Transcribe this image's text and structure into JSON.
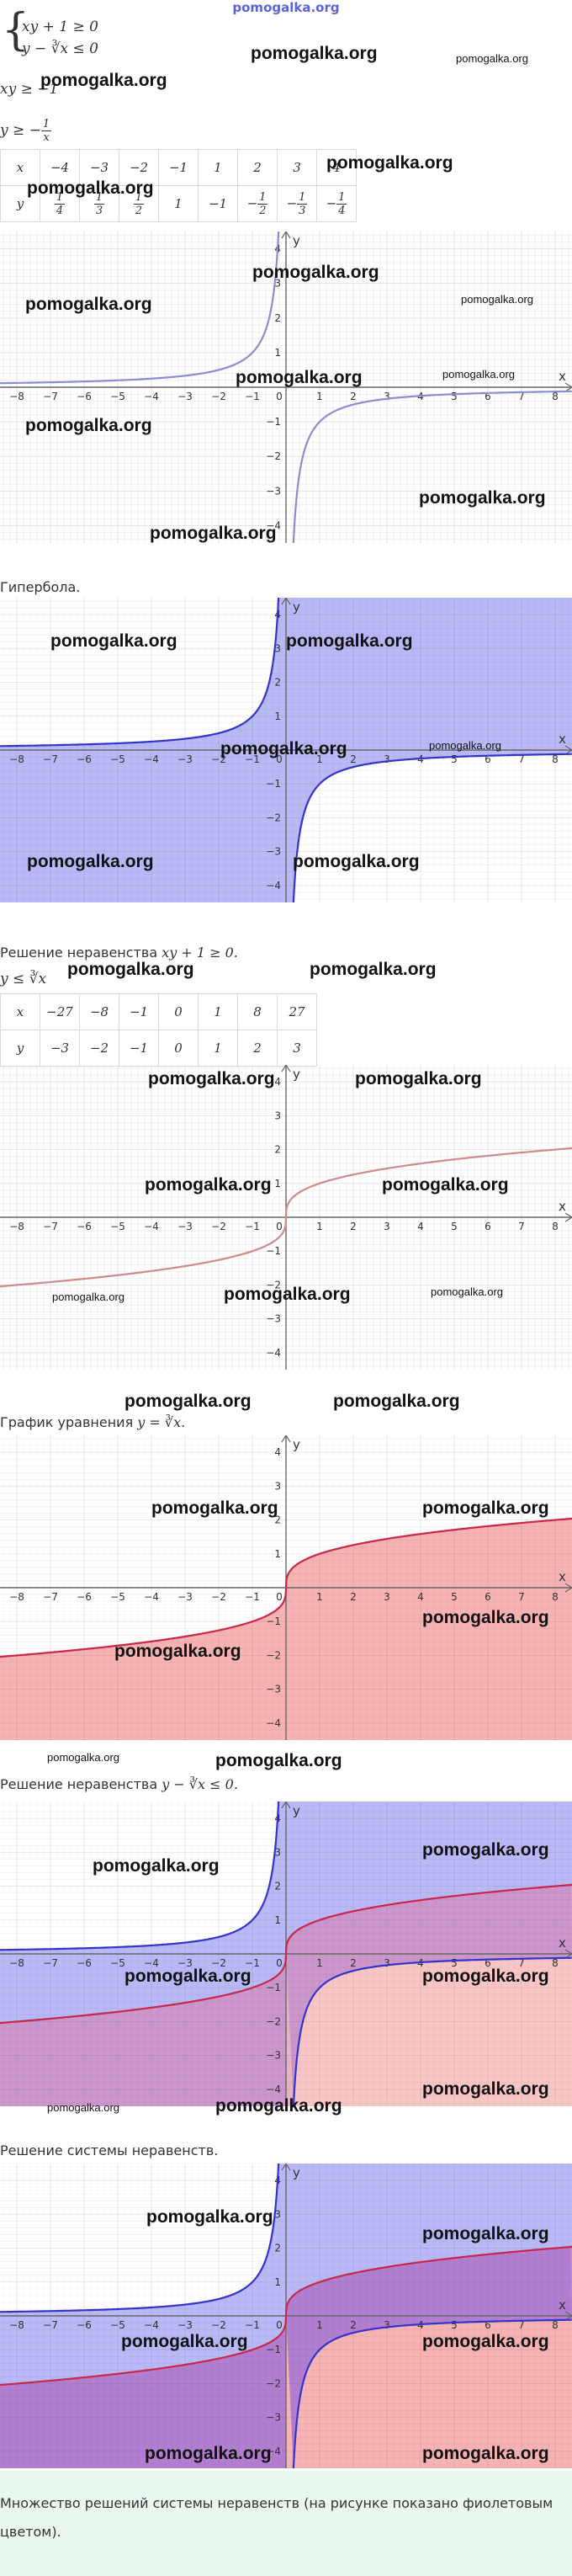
{
  "site": {
    "title": "pomogalka.org"
  },
  "watermark": "pomogalka.org",
  "system": {
    "line1": "xy + 1 ≥ 0",
    "line2": "y − ∛x ≤ 0"
  },
  "steps": {
    "step1": "xy ≥ −1",
    "step2_lhs": "y ≥ −",
    "step2_num": "1",
    "step2_den": "x"
  },
  "table1": {
    "x": [
      "x",
      "−4",
      "−3",
      "−2",
      "−1",
      "1",
      "2",
      "3",
      "4"
    ],
    "y": [
      {
        "t": "y"
      },
      {
        "n": "1",
        "d": "4"
      },
      {
        "n": "1",
        "d": "3"
      },
      {
        "n": "1",
        "d": "2"
      },
      {
        "t": "1"
      },
      {
        "t": "−1"
      },
      {
        "s": "−",
        "n": "1",
        "d": "2"
      },
      {
        "s": "−",
        "n": "1",
        "d": "3"
      },
      {
        "s": "−",
        "n": "1",
        "d": "4"
      }
    ]
  },
  "captions": {
    "hyperbola": "Гипербола.",
    "ineq1_prefix": "Решение неравенства",
    "ineq1_math": "xy + 1 ≥ 0.",
    "cbrt_step": "y ≤ ∛x",
    "graph_eq_prefix": "График уравнения",
    "graph_eq_math": "y = ∛x.",
    "ineq2_prefix": "Решение неравенства",
    "ineq2_math": "y − ∛x ≤ 0.",
    "system": "Решение системы неравенств.",
    "answer": "Множество решений системы неравенств (на рисунке показано фиолетовым цветом)."
  },
  "table2": {
    "x": [
      "x",
      "−27",
      "−8",
      "−1",
      "0",
      "1",
      "8",
      "27"
    ],
    "y": [
      "y",
      "−3",
      "−2",
      "−1",
      "0",
      "1",
      "2",
      "3"
    ]
  },
  "axes": {
    "x_label": "x",
    "y_label": "y",
    "x_ticks": [
      -8,
      -7,
      -6,
      -5,
      -4,
      -3,
      -2,
      -1,
      0,
      1,
      2,
      3,
      4,
      5,
      6,
      7,
      8
    ],
    "y_ticks": [
      -4,
      -3,
      -2,
      -1,
      1,
      2,
      3,
      4
    ],
    "xlim": [
      -8.5,
      8.5
    ],
    "ylim": [
      -4.5,
      4.5
    ]
  },
  "colors": {
    "hyperbola_light": "#8c8cd0",
    "hyperbola_dark": "#3434c8",
    "cbrt_light": "#d08a8a",
    "cbrt_dark": "#c8284a",
    "blue_fill": "#b9b9f7",
    "red_fill": "#f7b3b3",
    "purple_fill": "#b27ed1",
    "grid": "#e3e3e3",
    "footer_bg": "#e9f7ef"
  },
  "chart_data": [
    {
      "type": "line",
      "series": [
        {
          "function": "y = -1/x"
        }
      ],
      "xlim": [
        -8.5,
        8.5
      ],
      "ylim": [
        -4.5,
        4.5
      ],
      "grid": true
    },
    {
      "type": "area",
      "series": [
        {
          "function": "y = -1/x",
          "shading": "xy + 1 ≥ 0"
        }
      ],
      "xlim": [
        -8.5,
        8.5
      ],
      "ylim": [
        -4.5,
        4.5
      ],
      "grid": true
    },
    {
      "type": "line",
      "series": [
        {
          "function": "y = cbrt(x)"
        }
      ],
      "xlim": [
        -8.5,
        8.5
      ],
      "ylim": [
        -4.5,
        4.5
      ],
      "grid": true
    },
    {
      "type": "area",
      "series": [
        {
          "function": "y = cbrt(x)",
          "shading": "y ≤ cbrt(x)"
        }
      ],
      "xlim": [
        -8.5,
        8.5
      ],
      "ylim": [
        -4.5,
        4.5
      ],
      "grid": true
    },
    {
      "type": "area",
      "series": [
        {
          "function": "y = -1/x",
          "shading": "xy + 1 ≥ 0"
        },
        {
          "function": "y = cbrt(x)",
          "shading": "y ≤ cbrt(x)"
        }
      ],
      "xlim": [
        -8.5,
        8.5
      ],
      "ylim": [
        -4.5,
        4.5
      ],
      "grid": true
    },
    {
      "type": "area",
      "series": [
        {
          "function": "y = -1/x",
          "shading": "xy + 1 ≥ 0"
        },
        {
          "function": "y = cbrt(x)",
          "shading": "y ≤ cbrt(x)"
        }
      ],
      "highlight": "system solution",
      "xlim": [
        -8.5,
        8.5
      ],
      "ylim": [
        -4.5,
        4.5
      ],
      "grid": true
    }
  ]
}
